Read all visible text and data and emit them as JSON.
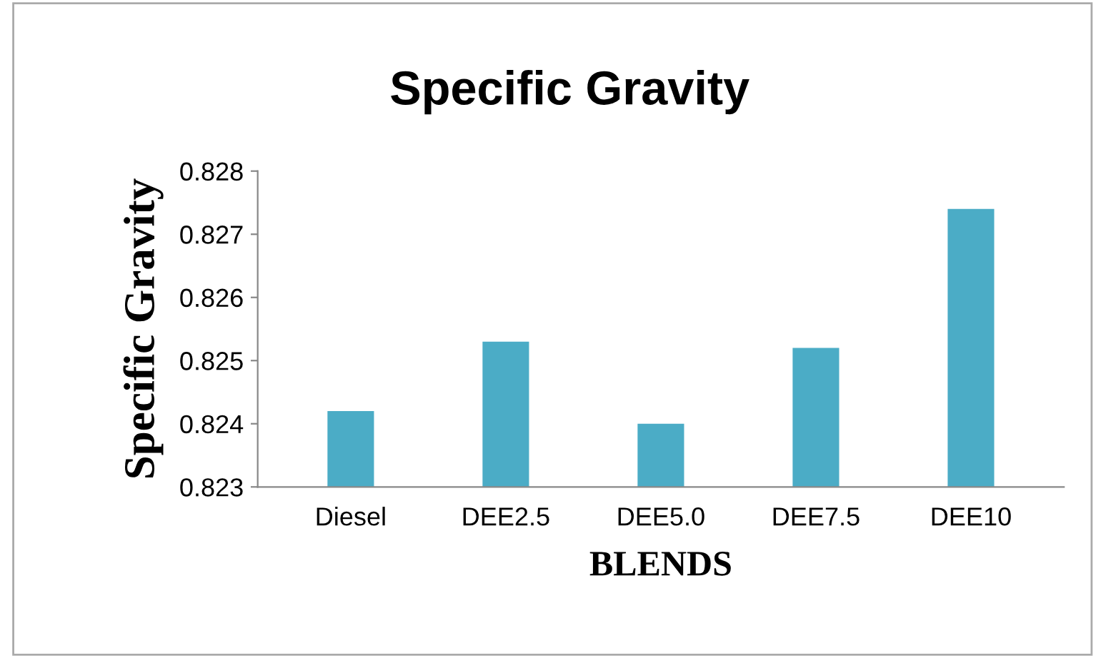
{
  "chart_data": {
    "type": "bar",
    "title": "Specific Gravity",
    "xlabel": "BLENDS",
    "ylabel": "Specific Gravity",
    "categories": [
      "Diesel",
      "DEE2.5",
      "DEE5.0",
      "DEE7.5",
      "DEE10"
    ],
    "values": [
      0.8242,
      0.8253,
      0.824,
      0.8252,
      0.8274
    ],
    "color": "#4bacc6",
    "ylim": [
      0.823,
      0.828
    ],
    "yticks": [
      0.823,
      0.824,
      0.825,
      0.826,
      0.827,
      0.828
    ],
    "grid": false,
    "legend": false
  }
}
